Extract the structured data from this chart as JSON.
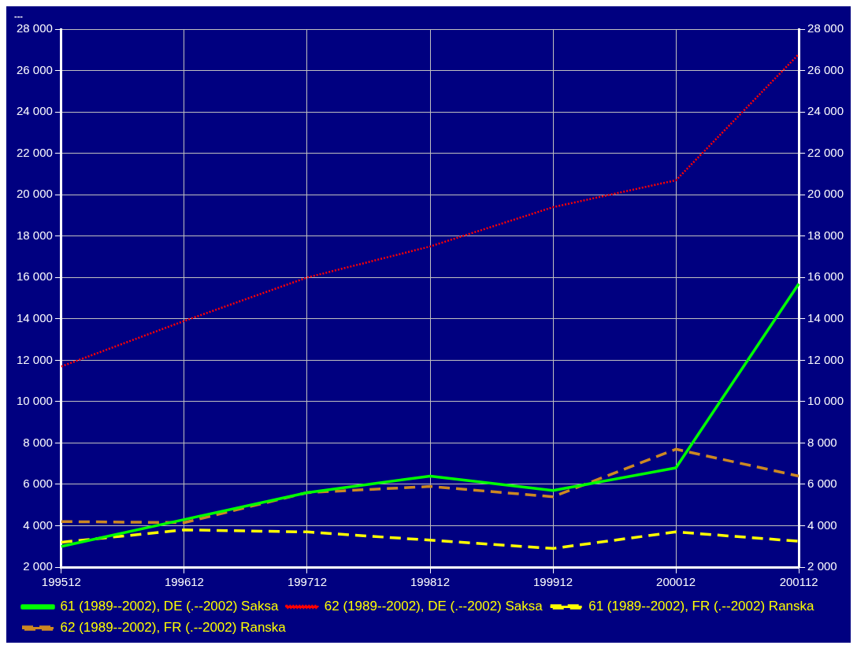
{
  "chart_data": {
    "type": "line",
    "title": "---",
    "categories": [
      "199512",
      "199612",
      "199712",
      "199812",
      "199912",
      "200012",
      "200112"
    ],
    "series": [
      {
        "name": "61 (1989--2002), DE (.--2002) Saksa",
        "color": "#00ff00",
        "line_style": "solid",
        "values": [
          3000,
          4300,
          5600,
          6400,
          5700,
          6800,
          15700
        ]
      },
      {
        "name": "62 (1989--2002), DE (.--2002) Saksa",
        "color": "#ff0000",
        "line_style": "dotted",
        "values": [
          11700,
          13900,
          16000,
          17500,
          19400,
          20700,
          26800
        ]
      },
      {
        "name": "61 (1989--2002), FR (.--2002) Ranska",
        "color": "#ffff00",
        "line_style": "dashed",
        "values": [
          3200,
          3800,
          3700,
          3300,
          2900,
          3700,
          3250
        ]
      },
      {
        "name": "62 (1989--2002), FR (.--2002) Ranska",
        "color": "#cc8822",
        "line_style": "dashed",
        "values": [
          4200,
          4150,
          5600,
          5900,
          5400,
          7700,
          6400
        ]
      }
    ],
    "ylim": [
      2000,
      28000
    ],
    "yticks": [
      {
        "value": 2000,
        "label": "2 000"
      },
      {
        "value": 4000,
        "label": "4 000"
      },
      {
        "value": 6000,
        "label": "6 000"
      },
      {
        "value": 8000,
        "label": "8 000"
      },
      {
        "value": 10000,
        "label": "10 000"
      },
      {
        "value": 12000,
        "label": "12 000"
      },
      {
        "value": 14000,
        "label": "14 000"
      },
      {
        "value": 16000,
        "label": "16 000"
      },
      {
        "value": 18000,
        "label": "18 000"
      },
      {
        "value": 20000,
        "label": "20 000"
      },
      {
        "value": 22000,
        "label": "22 000"
      },
      {
        "value": 24000,
        "label": "24 000"
      },
      {
        "value": 26000,
        "label": "26 000"
      },
      {
        "value": 28000,
        "label": "28 000"
      }
    ],
    "y2lim": [
      2000,
      28000
    ],
    "y2ticks": [
      {
        "value": 2000,
        "label": "2 000"
      },
      {
        "value": 4000,
        "label": "4 000"
      },
      {
        "value": 6000,
        "label": "6 000"
      },
      {
        "value": 8000,
        "label": "8 000"
      },
      {
        "value": 10000,
        "label": "10 000"
      },
      {
        "value": 12000,
        "label": "12 000"
      },
      {
        "value": 14000,
        "label": "14 000"
      },
      {
        "value": 16000,
        "label": "16 000"
      },
      {
        "value": 18000,
        "label": "18 000"
      },
      {
        "value": 20000,
        "label": "20 000"
      },
      {
        "value": 22000,
        "label": "22 000"
      },
      {
        "value": 24000,
        "label": "24 000"
      },
      {
        "value": 26000,
        "label": "26 000"
      },
      {
        "value": 28000,
        "label": "28 000"
      }
    ],
    "grid": true,
    "legend": "bottom",
    "marker": "none"
  }
}
